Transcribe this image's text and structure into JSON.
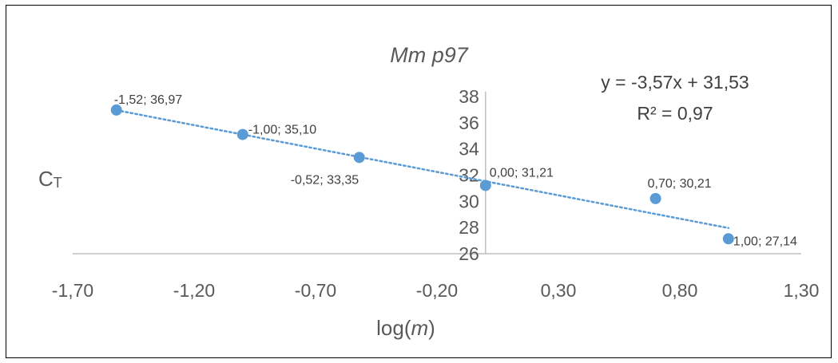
{
  "chart_data": {
    "type": "scatter",
    "title": "Mm p97",
    "xlabel_prefix": "log(",
    "xlabel_var": "m",
    "xlabel_suffix": ")",
    "ylabel_main": "C",
    "ylabel_sub": "T",
    "xlim": [
      -1.7,
      1.3
    ],
    "ylim": [
      26,
      38
    ],
    "x_ticks": [
      "-1,70",
      "-1,20",
      "-0,70",
      "-0,20",
      "0,30",
      "0,80",
      "1,30"
    ],
    "x_tick_values": [
      -1.7,
      -1.2,
      -0.7,
      -0.2,
      0.3,
      0.8,
      1.3
    ],
    "y_ticks": [
      "26",
      "28",
      "30",
      "32",
      "34",
      "36",
      "38"
    ],
    "y_tick_values": [
      26,
      28,
      30,
      32,
      34,
      36,
      38
    ],
    "points": [
      {
        "x": -1.52,
        "y": 36.97,
        "label": "-1,52; 36,97"
      },
      {
        "x": -1.0,
        "y": 35.1,
        "label": "-1,00; 35,10"
      },
      {
        "x": -0.52,
        "y": 33.35,
        "label": "-0,52; 33,35"
      },
      {
        "x": 0.0,
        "y": 31.21,
        "label": "0,00; 31,21"
      },
      {
        "x": 0.7,
        "y": 30.21,
        "label": "0,70; 30,21"
      },
      {
        "x": 1.0,
        "y": 27.14,
        "label": "1,00; 27,14"
      }
    ],
    "trendline": {
      "slope": -3.57,
      "intercept": 31.53,
      "equation": "y = -3,57x + 31,53",
      "r_squared": "R² = 0,97",
      "style": "dotted"
    },
    "colors": {
      "marker": "#5b9bd5",
      "trendline": "#5b9bd5",
      "axis": "#bfbfbf"
    }
  }
}
